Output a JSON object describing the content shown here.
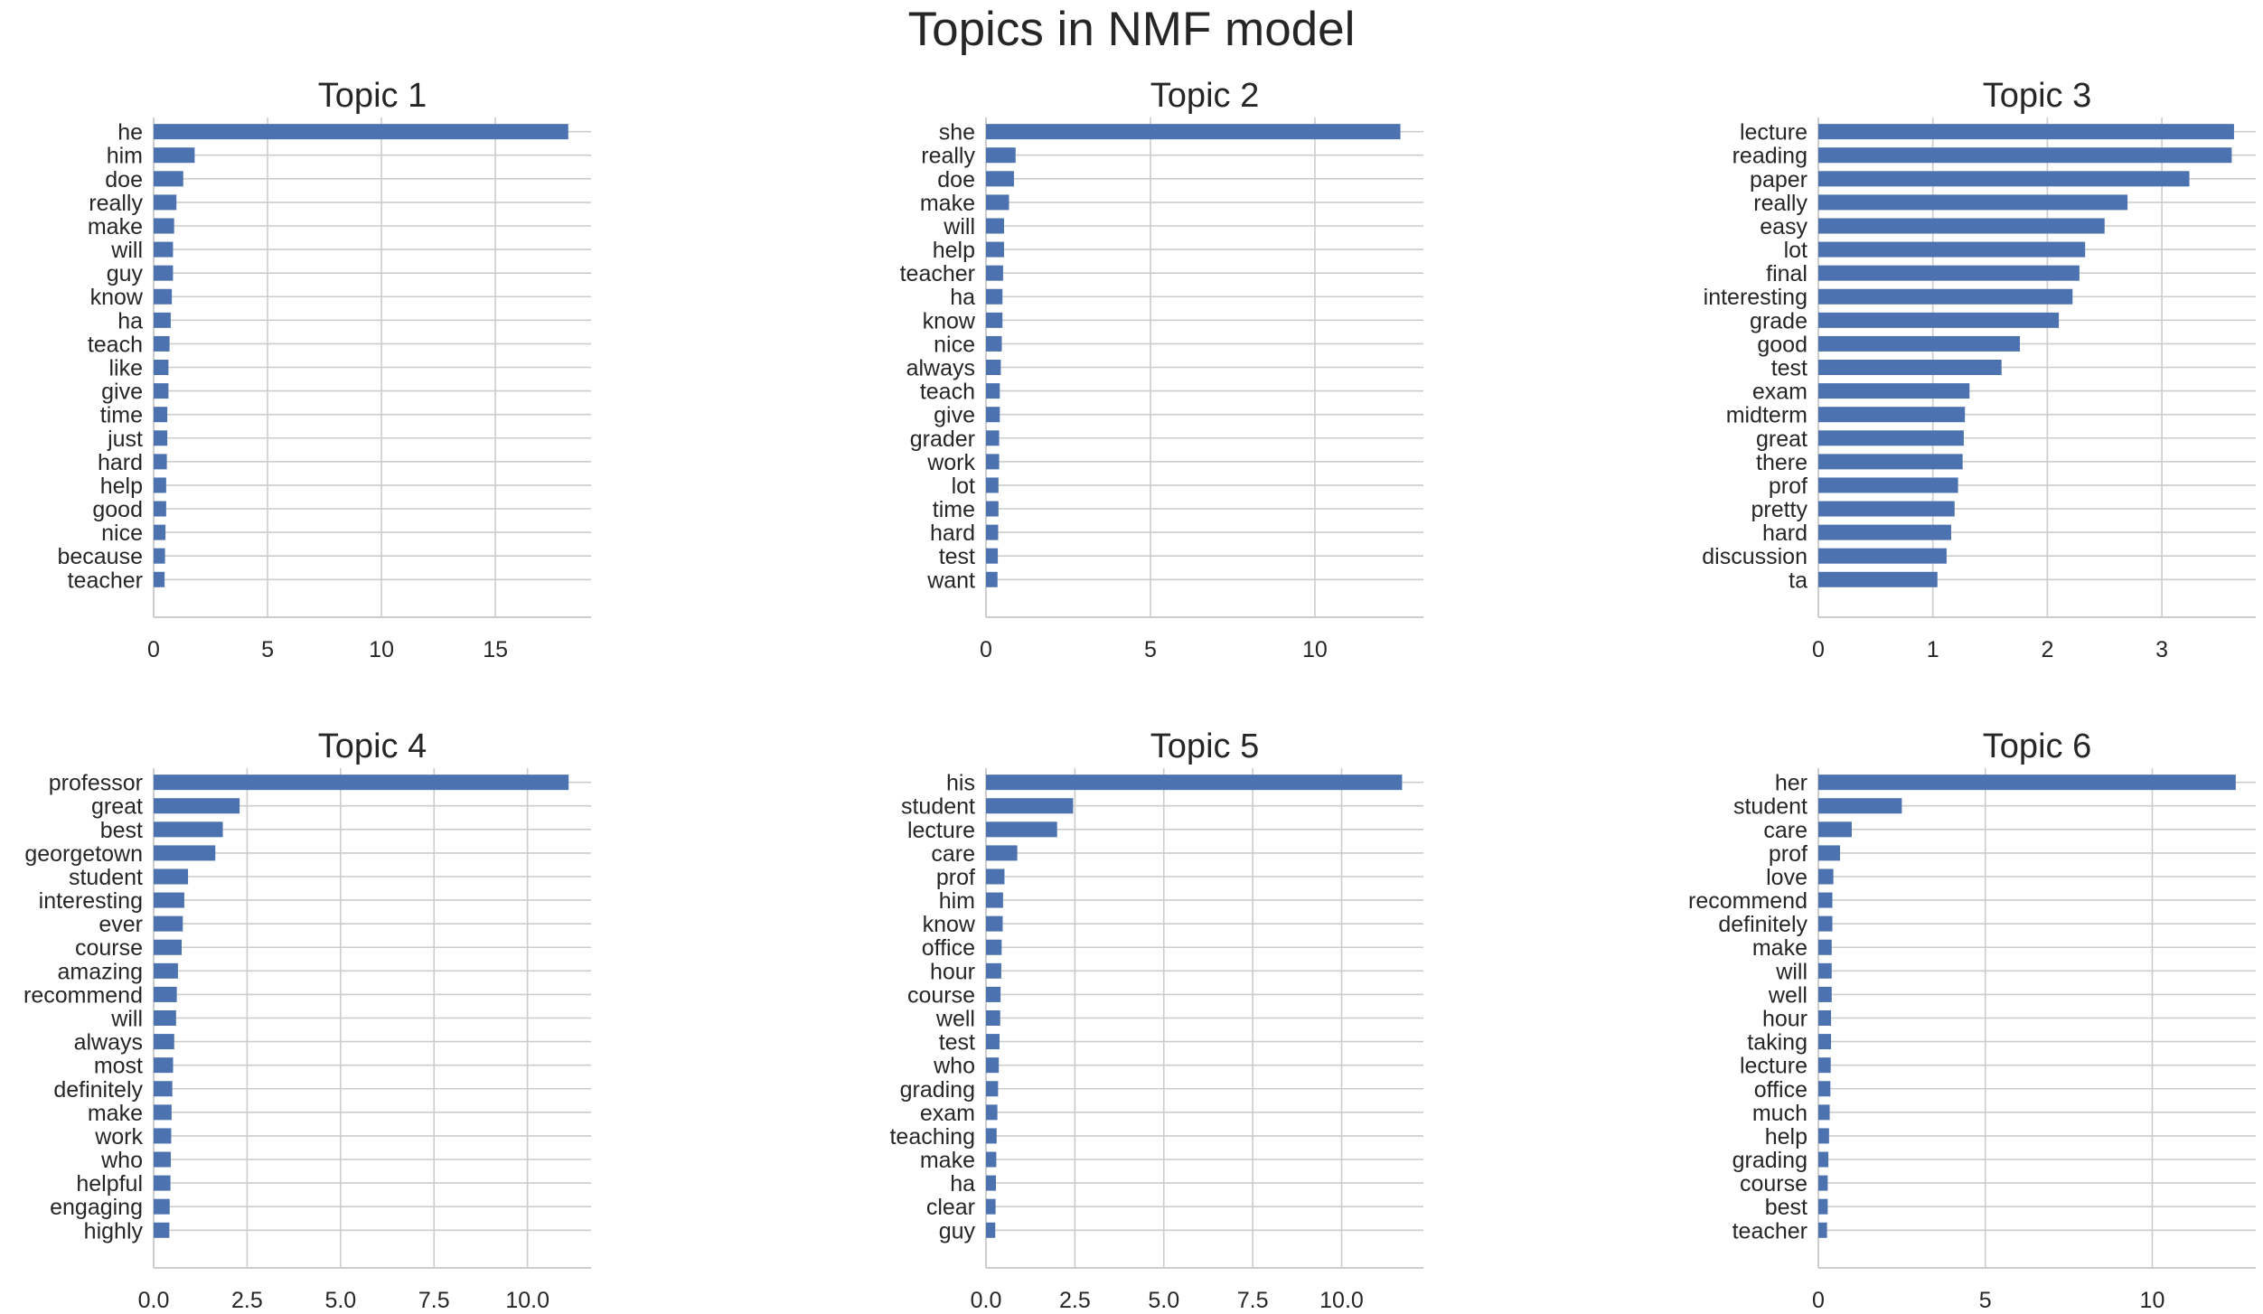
{
  "figure": {
    "title": "Topics in NMF model"
  },
  "colors": {
    "bar": "#4c72b0",
    "grid": "#cccccc",
    "text": "#262626"
  },
  "chart_data": [
    {
      "type": "bar",
      "orientation": "horizontal",
      "title": "Topic 1",
      "xlim": [
        0,
        19.2
      ],
      "xticks": [
        0,
        5,
        10,
        15
      ],
      "xtick_labels": [
        "0",
        "5",
        "10",
        "15"
      ],
      "grid": true,
      "categories": [
        "he",
        "him",
        "doe",
        "really",
        "make",
        "will",
        "guy",
        "know",
        "ha",
        "teach",
        "like",
        "give",
        "time",
        "just",
        "hard",
        "help",
        "good",
        "nice",
        "because",
        "teacher"
      ],
      "values": [
        18.2,
        1.8,
        1.3,
        1.0,
        0.9,
        0.85,
        0.85,
        0.8,
        0.75,
        0.7,
        0.65,
        0.65,
        0.6,
        0.6,
        0.58,
        0.55,
        0.55,
        0.52,
        0.5,
        0.48
      ]
    },
    {
      "type": "bar",
      "orientation": "horizontal",
      "title": "Topic 2",
      "xlim": [
        0,
        13.3
      ],
      "xticks": [
        0,
        5,
        10
      ],
      "xtick_labels": [
        "0",
        "5",
        "10"
      ],
      "grid": true,
      "categories": [
        "she",
        "really",
        "doe",
        "make",
        "will",
        "help",
        "teacher",
        "ha",
        "know",
        "nice",
        "always",
        "teach",
        "give",
        "grader",
        "work",
        "lot",
        "time",
        "hard",
        "test",
        "want"
      ],
      "values": [
        12.6,
        0.9,
        0.85,
        0.7,
        0.55,
        0.55,
        0.52,
        0.5,
        0.5,
        0.48,
        0.45,
        0.42,
        0.42,
        0.4,
        0.4,
        0.38,
        0.38,
        0.37,
        0.36,
        0.35
      ]
    },
    {
      "type": "bar",
      "orientation": "horizontal",
      "title": "Topic 3",
      "xlim": [
        0,
        3.82
      ],
      "xticks": [
        0,
        1,
        2,
        3
      ],
      "xtick_labels": [
        "0",
        "1",
        "2",
        "3"
      ],
      "grid": true,
      "categories": [
        "lecture",
        "reading",
        "paper",
        "really",
        "easy",
        "lot",
        "final",
        "interesting",
        "grade",
        "good",
        "test",
        "exam",
        "midterm",
        "great",
        "there",
        "prof",
        "pretty",
        "hard",
        "discussion",
        "ta"
      ],
      "values": [
        3.63,
        3.61,
        3.24,
        2.7,
        2.5,
        2.33,
        2.28,
        2.22,
        2.1,
        1.76,
        1.6,
        1.32,
        1.28,
        1.27,
        1.26,
        1.22,
        1.19,
        1.16,
        1.12,
        1.04
      ]
    },
    {
      "type": "bar",
      "orientation": "horizontal",
      "title": "Topic 4",
      "xlim": [
        0,
        11.7
      ],
      "xticks": [
        0,
        2.5,
        5,
        7.5,
        10
      ],
      "xtick_labels": [
        "0.0",
        "2.5",
        "5.0",
        "7.5",
        "10.0"
      ],
      "grid": true,
      "categories": [
        "professor",
        "great",
        "best",
        "georgetown",
        "student",
        "interesting",
        "ever",
        "course",
        "amazing",
        "recommend",
        "will",
        "always",
        "most",
        "definitely",
        "make",
        "work",
        "who",
        "helpful",
        "engaging",
        "highly"
      ],
      "values": [
        11.1,
        2.3,
        1.85,
        1.65,
        0.92,
        0.82,
        0.78,
        0.75,
        0.65,
        0.62,
        0.6,
        0.55,
        0.52,
        0.5,
        0.48,
        0.47,
        0.46,
        0.45,
        0.43,
        0.42
      ]
    },
    {
      "type": "bar",
      "orientation": "horizontal",
      "title": "Topic 5",
      "xlim": [
        0,
        12.3
      ],
      "xticks": [
        0,
        2.5,
        5,
        7.5,
        10
      ],
      "xtick_labels": [
        "0.0",
        "2.5",
        "5.0",
        "7.5",
        "10.0"
      ],
      "grid": true,
      "categories": [
        "his",
        "student",
        "lecture",
        "care",
        "prof",
        "him",
        "know",
        "office",
        "hour",
        "course",
        "well",
        "test",
        "who",
        "grading",
        "exam",
        "teaching",
        "make",
        "ha",
        "clear",
        "guy"
      ],
      "values": [
        11.7,
        2.45,
        2.0,
        0.88,
        0.52,
        0.48,
        0.47,
        0.44,
        0.43,
        0.41,
        0.4,
        0.38,
        0.36,
        0.34,
        0.32,
        0.3,
        0.29,
        0.28,
        0.27,
        0.26
      ]
    },
    {
      "type": "bar",
      "orientation": "horizontal",
      "title": "Topic 6",
      "xlim": [
        0,
        13.1
      ],
      "xticks": [
        0,
        5,
        10
      ],
      "xtick_labels": [
        "0",
        "5",
        "10"
      ],
      "grid": true,
      "categories": [
        "her",
        "student",
        "care",
        "prof",
        "love",
        "recommend",
        "definitely",
        "make",
        "will",
        "well",
        "hour",
        "taking",
        "lecture",
        "office",
        "much",
        "help",
        "grading",
        "course",
        "best",
        "teacher"
      ],
      "values": [
        12.5,
        2.5,
        1.0,
        0.65,
        0.45,
        0.42,
        0.42,
        0.4,
        0.4,
        0.4,
        0.38,
        0.38,
        0.37,
        0.36,
        0.34,
        0.32,
        0.3,
        0.28,
        0.28,
        0.26
      ]
    }
  ]
}
